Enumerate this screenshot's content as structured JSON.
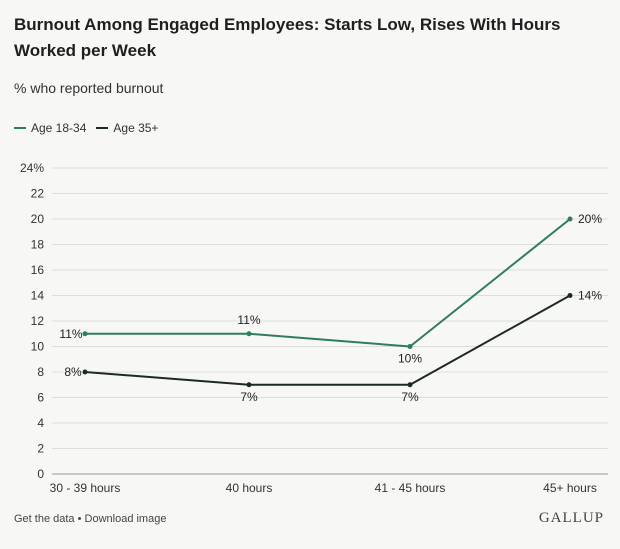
{
  "chart_data": {
    "type": "line",
    "title": "Burnout Among Engaged Employees: Starts Low, Rises With Hours Worked per Week",
    "subtitle": "% who reported burnout",
    "categories": [
      "30 - 39 hours",
      "40 hours",
      "41 - 45 hours",
      "45+ hours"
    ],
    "series": [
      {
        "name": "Age 18-34",
        "color": "#2e7d5b",
        "values": [
          11,
          11,
          10,
          20
        ],
        "labels": [
          "11%",
          "11%",
          "10%",
          "20%"
        ]
      },
      {
        "name": "Age 35+",
        "color": "#1c2a22",
        "values": [
          8,
          7,
          7,
          14
        ],
        "labels": [
          "8%",
          "7%",
          "7%",
          "14%"
        ]
      }
    ],
    "ylim": [
      0,
      24
    ],
    "yticks": [
      "0",
      "2",
      "4",
      "6",
      "8",
      "10",
      "12",
      "14",
      "16",
      "18",
      "20",
      "22",
      "24%"
    ],
    "grid": true,
    "legend_position": "top-left"
  },
  "footer": {
    "get_data": "Get the data",
    "separator": " • ",
    "download": "Download image",
    "brand": "GALLUP"
  }
}
